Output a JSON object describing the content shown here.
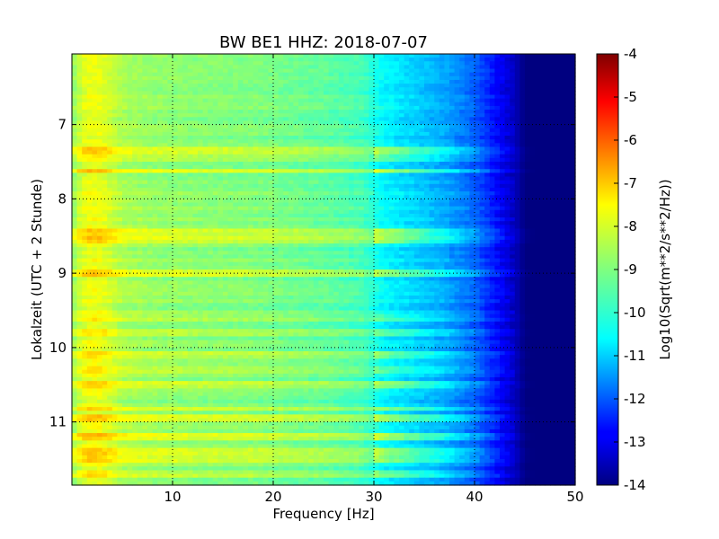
{
  "chart_data": {
    "type": "heatmap",
    "title": "BW BE1 HHZ: 2018-07-07",
    "xlabel": "Frequency [Hz]",
    "ylabel": "Lokalzeit (UTC + 2 Stunde)",
    "xlim": [
      0,
      50
    ],
    "ylim": [
      6.05,
      11.85
    ],
    "y_inverted": true,
    "x_ticks": [
      "10",
      "20",
      "30",
      "40",
      "50"
    ],
    "x_tick_values": [
      10,
      20,
      30,
      40,
      50
    ],
    "y_ticks": [
      "7",
      "8",
      "9",
      "10",
      "11"
    ],
    "y_tick_values": [
      7,
      8,
      9,
      10,
      11
    ],
    "grid": true,
    "colormap": "jet",
    "colorbar": {
      "label": "Log10(Sqrt(m**2/s**2/Hz))",
      "min": -14,
      "max": -4,
      "ticks": [
        "-4",
        "-5",
        "-6",
        "-7",
        "-8",
        "-9",
        "-10",
        "-11",
        "-12",
        "-13",
        "-14"
      ],
      "tick_values": [
        -4,
        -5,
        -6,
        -7,
        -8,
        -9,
        -10,
        -11,
        -12,
        -13,
        -14
      ]
    },
    "frequency_profile": {
      "frequency_hz": [
        0,
        1,
        2,
        3,
        5,
        8,
        12,
        18,
        25,
        29,
        31,
        34,
        37,
        40,
        42,
        44,
        45,
        50
      ],
      "log10_amplitude": [
        -8.9,
        -8.1,
        -7.9,
        -8.0,
        -8.6,
        -8.8,
        -8.9,
        -9.0,
        -9.3,
        -9.6,
        -10.3,
        -10.7,
        -11.1,
        -11.8,
        -12.6,
        -13.4,
        -14.0,
        -14.0
      ]
    },
    "high_noise_bands": [
      {
        "hour": 7.35,
        "boost": 1.0
      },
      {
        "hour": 7.45,
        "boost": 0.7
      },
      {
        "hour": 7.62,
        "boost": 1.2
      },
      {
        "hour": 8.45,
        "boost": 1.2
      },
      {
        "hour": 8.55,
        "boost": 1.1
      },
      {
        "hour": 8.98,
        "boost": 0.9
      },
      {
        "hour": 9.6,
        "boost": 0.5
      },
      {
        "hour": 9.78,
        "boost": 0.6
      },
      {
        "hour": 10.1,
        "boost": 0.7
      },
      {
        "hour": 10.3,
        "boost": 0.5
      },
      {
        "hour": 10.48,
        "boost": 1.0
      },
      {
        "hour": 10.82,
        "boost": 0.8
      },
      {
        "hour": 10.95,
        "boost": 1.0
      },
      {
        "hour": 11.18,
        "boost": 1.1
      },
      {
        "hour": 11.38,
        "boost": 1.0
      },
      {
        "hour": 11.5,
        "boost": 0.9
      },
      {
        "hour": 11.7,
        "boost": 0.8
      }
    ]
  }
}
